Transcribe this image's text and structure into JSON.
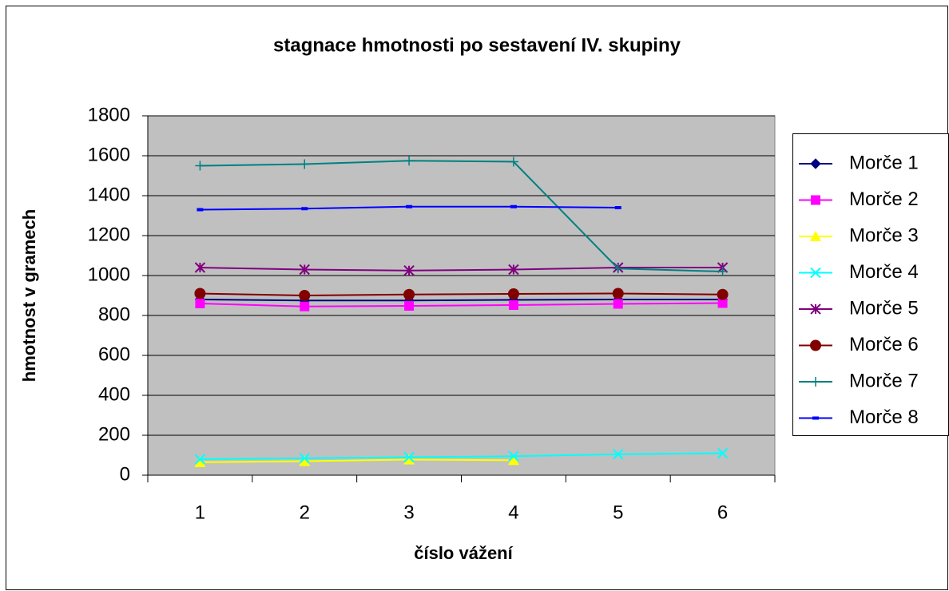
{
  "chart_data": {
    "type": "line",
    "title": "stagnace hmotnosti po sestavení IV. skupiny",
    "x_label": "číslo vážení",
    "y_label": "hmotnost v gramech",
    "categories": [
      "1",
      "2",
      "3",
      "4",
      "5",
      "6"
    ],
    "ylim": [
      0,
      1800
    ],
    "yticks": [
      0,
      200,
      400,
      600,
      800,
      1000,
      1200,
      1400,
      1600,
      1800
    ],
    "grid": true,
    "legend": "right",
    "series": [
      {
        "name": "Morče 1",
        "color": "#000080",
        "marker": "diamond",
        "values": [
          880,
          875,
          875,
          878,
          880,
          880
        ]
      },
      {
        "name": "Morče 2",
        "color": "#ff00ff",
        "marker": "square",
        "values": [
          860,
          845,
          848,
          852,
          858,
          862
        ]
      },
      {
        "name": "Morče 3",
        "color": "#ffff00",
        "marker": "triangle",
        "values": [
          65,
          70,
          78,
          75,
          null,
          null
        ]
      },
      {
        "name": "Morče 4",
        "color": "#00ffff",
        "marker": "x",
        "values": [
          80,
          85,
          90,
          95,
          105,
          110
        ]
      },
      {
        "name": "Morče 5",
        "color": "#800080",
        "marker": "star",
        "values": [
          1040,
          1030,
          1025,
          1030,
          1040,
          1040
        ]
      },
      {
        "name": "Morče 6",
        "color": "#800000",
        "marker": "circle",
        "values": [
          910,
          900,
          905,
          908,
          910,
          905
        ]
      },
      {
        "name": "Morče 7",
        "color": "#008080",
        "marker": "plus",
        "values": [
          1550,
          1558,
          1575,
          1570,
          1035,
          1020
        ]
      },
      {
        "name": "Morče 8",
        "color": "#0000ff",
        "marker": "dash",
        "values": [
          1330,
          1335,
          1345,
          1345,
          1340,
          null
        ]
      }
    ]
  }
}
